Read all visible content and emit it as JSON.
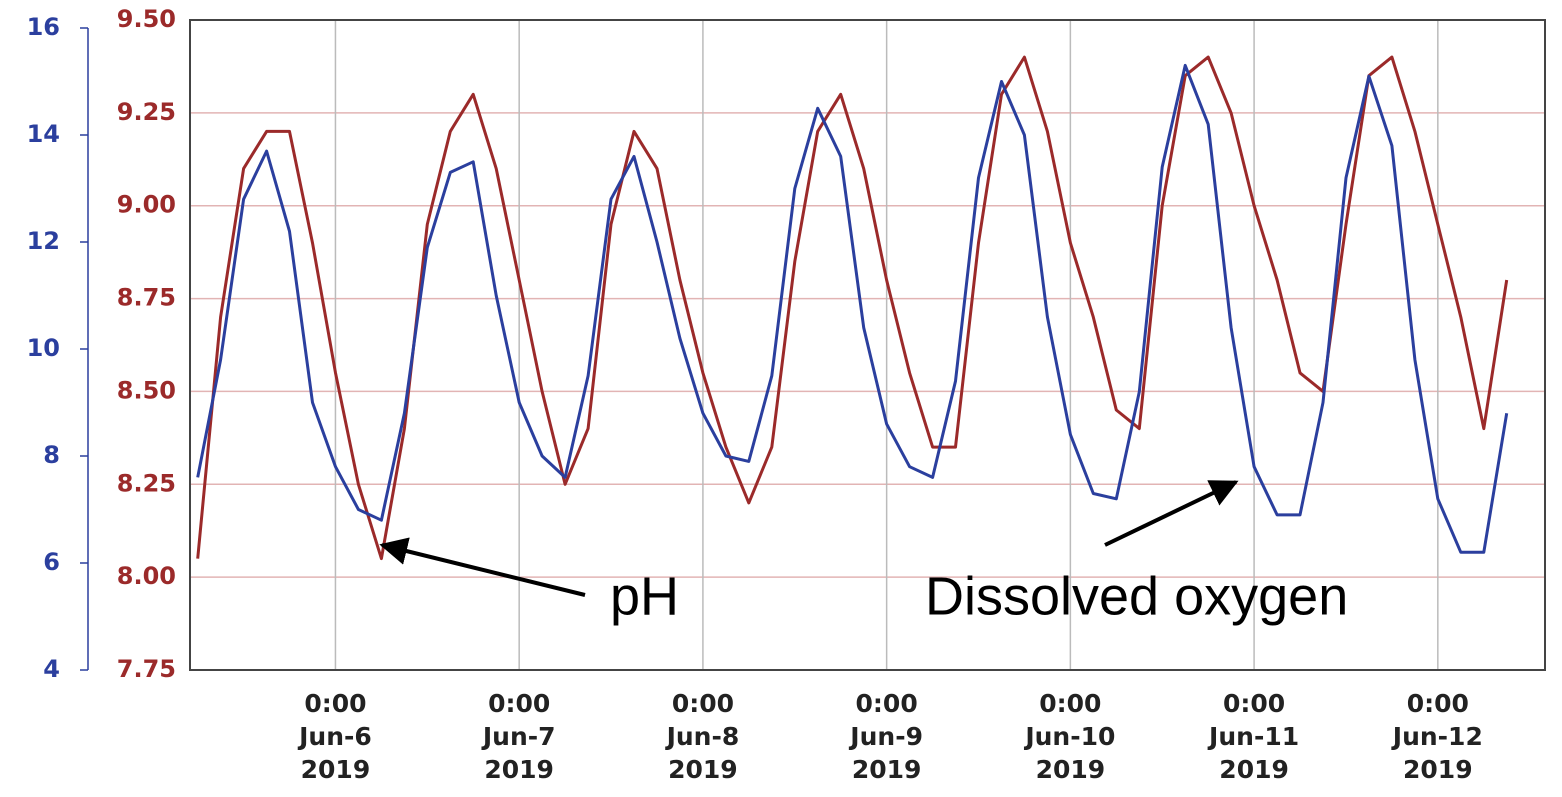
{
  "chart_data": {
    "type": "line",
    "x": [
      "2019-06-05 06:00",
      "2019-06-05 09:00",
      "2019-06-05 12:00",
      "2019-06-05 15:00",
      "2019-06-05 18:00",
      "2019-06-05 21:00",
      "2019-06-06 00:00",
      "2019-06-06 03:00",
      "2019-06-06 06:00",
      "2019-06-06 09:00",
      "2019-06-06 12:00",
      "2019-06-06 15:00",
      "2019-06-06 18:00",
      "2019-06-06 21:00",
      "2019-06-07 00:00",
      "2019-06-07 03:00",
      "2019-06-07 06:00",
      "2019-06-07 09:00",
      "2019-06-07 12:00",
      "2019-06-07 15:00",
      "2019-06-07 18:00",
      "2019-06-07 21:00",
      "2019-06-08 00:00",
      "2019-06-08 03:00",
      "2019-06-08 06:00",
      "2019-06-08 09:00",
      "2019-06-08 12:00",
      "2019-06-08 15:00",
      "2019-06-08 18:00",
      "2019-06-08 21:00",
      "2019-06-09 00:00",
      "2019-06-09 03:00",
      "2019-06-09 06:00",
      "2019-06-09 09:00",
      "2019-06-09 12:00",
      "2019-06-09 15:00",
      "2019-06-09 18:00",
      "2019-06-09 21:00",
      "2019-06-10 00:00",
      "2019-06-10 03:00",
      "2019-06-10 06:00",
      "2019-06-10 09:00",
      "2019-06-10 12:00",
      "2019-06-10 15:00",
      "2019-06-10 18:00",
      "2019-06-10 21:00",
      "2019-06-11 00:00",
      "2019-06-11 03:00",
      "2019-06-11 06:00",
      "2019-06-11 09:00",
      "2019-06-11 12:00",
      "2019-06-11 15:00",
      "2019-06-11 18:00",
      "2019-06-11 21:00",
      "2019-06-12 00:00",
      "2019-06-12 03:00",
      "2019-06-12 06:00",
      "2019-06-12 09:00"
    ],
    "series": [
      {
        "color": "#9b2a2a",
        "axis": "y",
        "values": [
          8.05,
          8.7,
          9.1,
          9.2,
          9.2,
          8.9,
          8.55,
          8.25,
          8.05,
          8.4,
          8.95,
          9.2,
          9.3,
          9.1,
          8.8,
          8.5,
          8.25,
          8.4,
          8.95,
          9.2,
          9.1,
          8.8,
          8.55,
          8.35,
          8.2,
          8.35,
          8.85,
          9.2,
          9.3,
          9.1,
          8.8,
          8.55,
          8.35,
          8.35,
          8.9,
          9.3,
          9.4,
          9.2,
          8.9,
          8.7,
          8.45,
          8.4,
          9.0,
          9.35,
          9.4,
          9.25,
          9.0,
          8.8,
          8.55,
          8.5,
          8.95,
          9.35,
          9.4,
          9.2,
          8.95,
          8.7,
          8.4,
          8.8
        ]
      },
      {
        "color": "#2b3f9e",
        "axis": "y2",
        "values": [
          7.6,
          9.8,
          12.8,
          13.7,
          12.2,
          9.0,
          7.8,
          7.0,
          6.8,
          8.8,
          11.9,
          13.3,
          13.5,
          11.0,
          9.0,
          8.0,
          7.6,
          9.5,
          12.8,
          13.6,
          12.0,
          10.2,
          8.8,
          8.0,
          7.9,
          9.5,
          13.0,
          14.5,
          13.6,
          10.4,
          8.6,
          7.8,
          7.6,
          9.4,
          13.2,
          15.0,
          14.0,
          10.6,
          8.4,
          7.3,
          7.2,
          9.2,
          13.4,
          15.3,
          14.2,
          10.4,
          7.8,
          6.9,
          6.9,
          9.0,
          13.2,
          15.1,
          13.8,
          9.8,
          7.2,
          6.2,
          6.2,
          8.8
        ]
      }
    ],
    "xlim": [
      "2019-06-05 05:00",
      "2019-06-12 14:00"
    ],
    "xticks": [
      {
        "value": "2019-06-06 00:00",
        "label": "0:00 Jun-6 2019"
      },
      {
        "value": "2019-06-07 00:00",
        "label": "0:00 Jun-7 2019"
      },
      {
        "value": "2019-06-08 00:00",
        "label": "0:00 Jun-8 2019"
      },
      {
        "value": "2019-06-09 00:00",
        "label": "0:00 Jun-9 2019"
      },
      {
        "value": "2019-06-10 00:00",
        "label": "0:00 Jun-10 2019"
      },
      {
        "value": "2019-06-11 00:00",
        "label": "0:00 Jun-11 2019"
      },
      {
        "value": "2019-06-12 00:00",
        "label": "0:00 Jun-12 2019"
      }
    ],
    "ylim": [
      7.75,
      9.5
    ],
    "yticks": [
      7.75,
      {
        "value": 8,
        "label": "8.00"
      },
      8.25,
      {
        "value": 8.5,
        "label": "8.50"
      },
      8.75,
      {
        "value": 9,
        "label": "9.00"
      },
      9.25,
      {
        "value": 9.5,
        "label": "9.50"
      }
    ],
    "y2lim": [
      4,
      16
    ],
    "y2ticks": [
      4,
      6,
      8,
      10,
      12,
      14,
      16
    ],
    "grid": true,
    "annotations": [
      {
        "text": "pH"
      },
      {
        "text": "Dissolved oxygen"
      }
    ]
  }
}
